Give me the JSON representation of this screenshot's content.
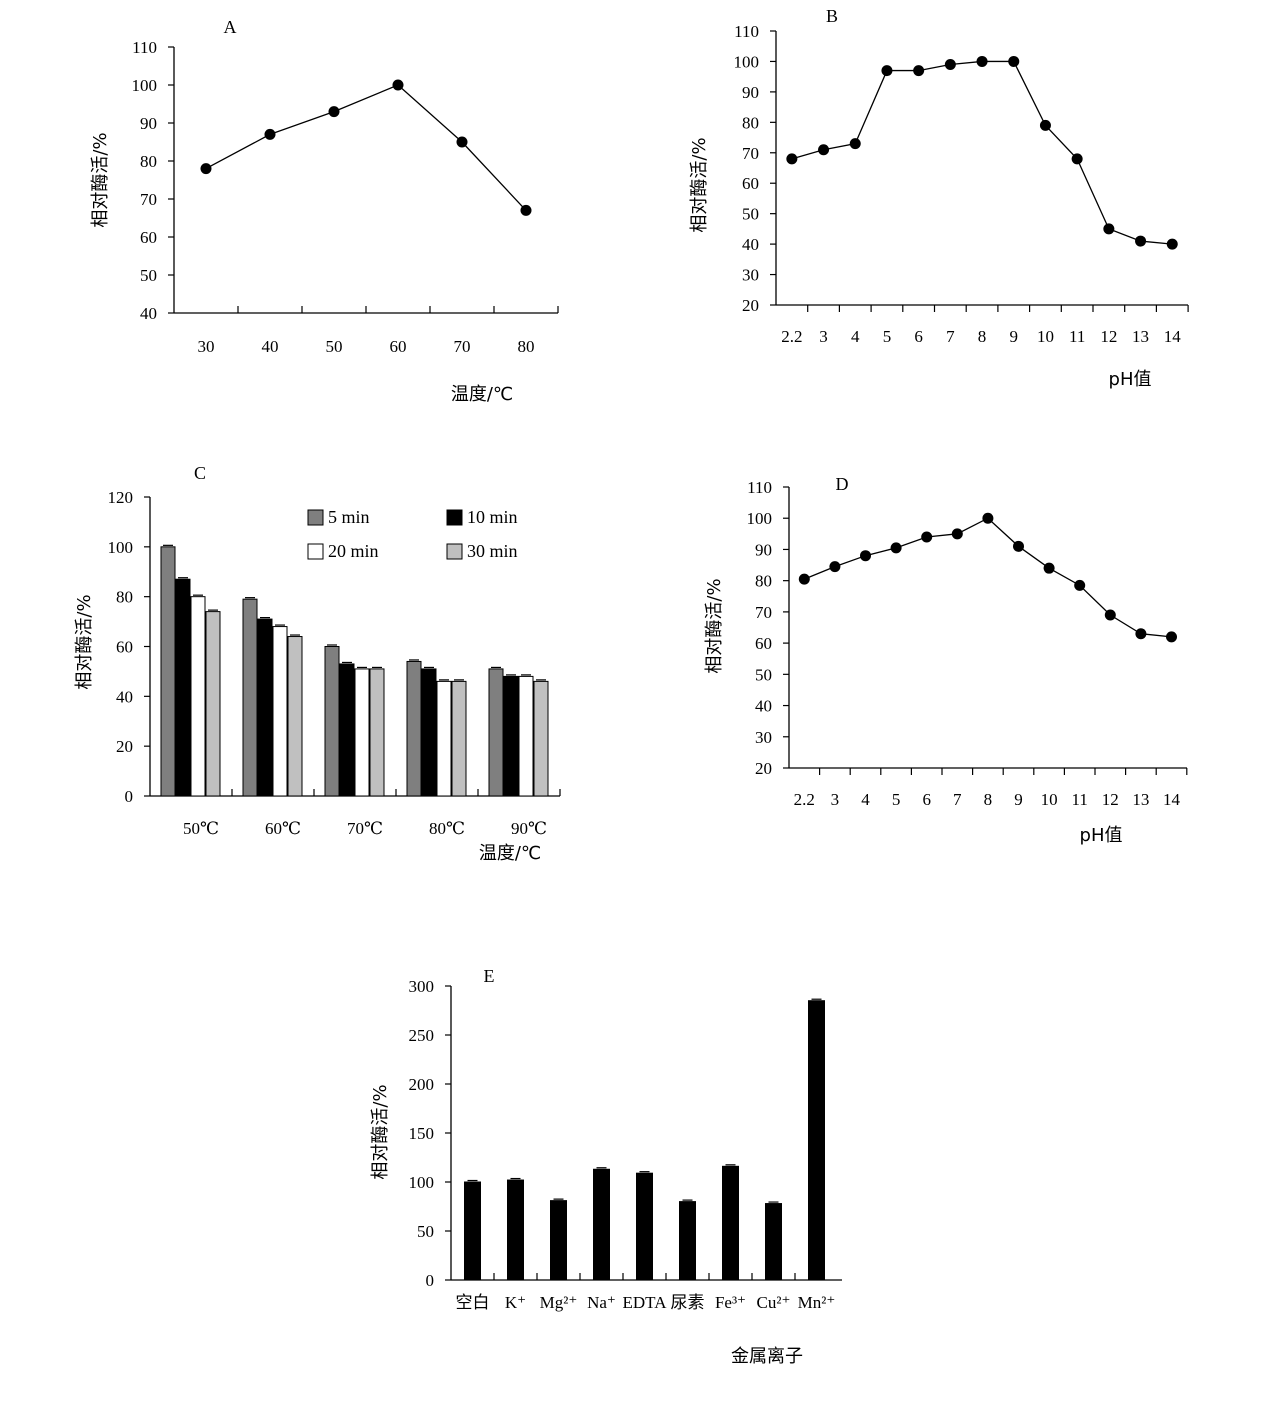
{
  "chart_data": [
    {
      "id": "A",
      "type": "line",
      "title": "A",
      "xlabel": "温度/℃",
      "ylabel": "相对酶活/%",
      "x": [
        30,
        40,
        50,
        60,
        70,
        80
      ],
      "x_tick_labels": [
        "30",
        "40",
        "50",
        "60",
        "70",
        "80"
      ],
      "values": [
        78,
        87,
        93,
        100,
        85,
        67
      ],
      "ylim": [
        40,
        110
      ],
      "y_ticks": [
        40,
        50,
        60,
        70,
        80,
        90,
        100,
        110
      ]
    },
    {
      "id": "B",
      "type": "line",
      "title": "B",
      "xlabel": "pH值",
      "ylabel": "相对酶活/%",
      "x": [
        2.2,
        3,
        4,
        5,
        6,
        7,
        8,
        9,
        10,
        11,
        12,
        13,
        14
      ],
      "x_tick_labels": [
        "2.2",
        "3",
        "4",
        "5",
        "6",
        "7",
        "8",
        "9",
        "10",
        "11",
        "12",
        "13",
        "14"
      ],
      "values": [
        68,
        71,
        73,
        97,
        97,
        99,
        100,
        100,
        79,
        68,
        45,
        41,
        40
      ],
      "ylim": [
        20,
        110
      ],
      "y_ticks": [
        20,
        30,
        40,
        50,
        60,
        70,
        80,
        90,
        100,
        110
      ]
    },
    {
      "id": "C",
      "type": "bar",
      "title": "C",
      "xlabel": "温度/℃",
      "ylabel": "相对酶活/%",
      "categories": [
        "50℃",
        "60℃",
        "70℃",
        "80℃",
        "90℃"
      ],
      "series": [
        {
          "name": "5 min",
          "color": "#7f7f7f",
          "values": [
            100,
            79,
            60,
            54,
            51
          ]
        },
        {
          "name": "10 min",
          "color": "#000000",
          "values": [
            87,
            71,
            53,
            51,
            48
          ]
        },
        {
          "name": "20 min",
          "color": "#ffffff",
          "values": [
            80,
            68,
            51,
            46,
            48
          ]
        },
        {
          "name": "30 min",
          "color": "#c0c0c0",
          "values": [
            74,
            64,
            51,
            46,
            46
          ]
        }
      ],
      "ylim": [
        0,
        120
      ],
      "y_ticks": [
        0,
        20,
        40,
        60,
        80,
        100,
        120
      ],
      "legend": "top-right"
    },
    {
      "id": "D",
      "type": "line",
      "title": "D",
      "xlabel": "pH值",
      "ylabel": "相对酶活/%",
      "x": [
        2.2,
        3,
        4,
        5,
        6,
        7,
        8,
        9,
        10,
        11,
        12,
        13,
        14
      ],
      "x_tick_labels": [
        "2.2",
        "3",
        "4",
        "5",
        "6",
        "7",
        "8",
        "9",
        "10",
        "11",
        "12",
        "13",
        "14"
      ],
      "values": [
        80.5,
        84.5,
        88,
        90.5,
        94,
        95,
        100,
        91,
        84,
        78.5,
        69,
        63,
        62
      ],
      "ylim": [
        20,
        110
      ],
      "y_ticks": [
        20,
        30,
        40,
        50,
        60,
        70,
        80,
        90,
        100,
        110
      ]
    },
    {
      "id": "E",
      "type": "bar",
      "title": "E",
      "xlabel": "金属离子",
      "ylabel": "相对酶活/%",
      "categories": [
        "空白",
        "K⁺",
        "Mg²⁺",
        "Na⁺",
        "EDTA",
        "尿素",
        "Fe³⁺",
        "Cu²⁺",
        "Mn²⁺"
      ],
      "values": [
        100,
        102,
        81,
        113,
        109,
        80,
        116,
        78,
        285
      ],
      "ylim": [
        0,
        300
      ],
      "y_ticks": [
        0,
        50,
        100,
        150,
        200,
        250,
        300
      ]
    }
  ]
}
